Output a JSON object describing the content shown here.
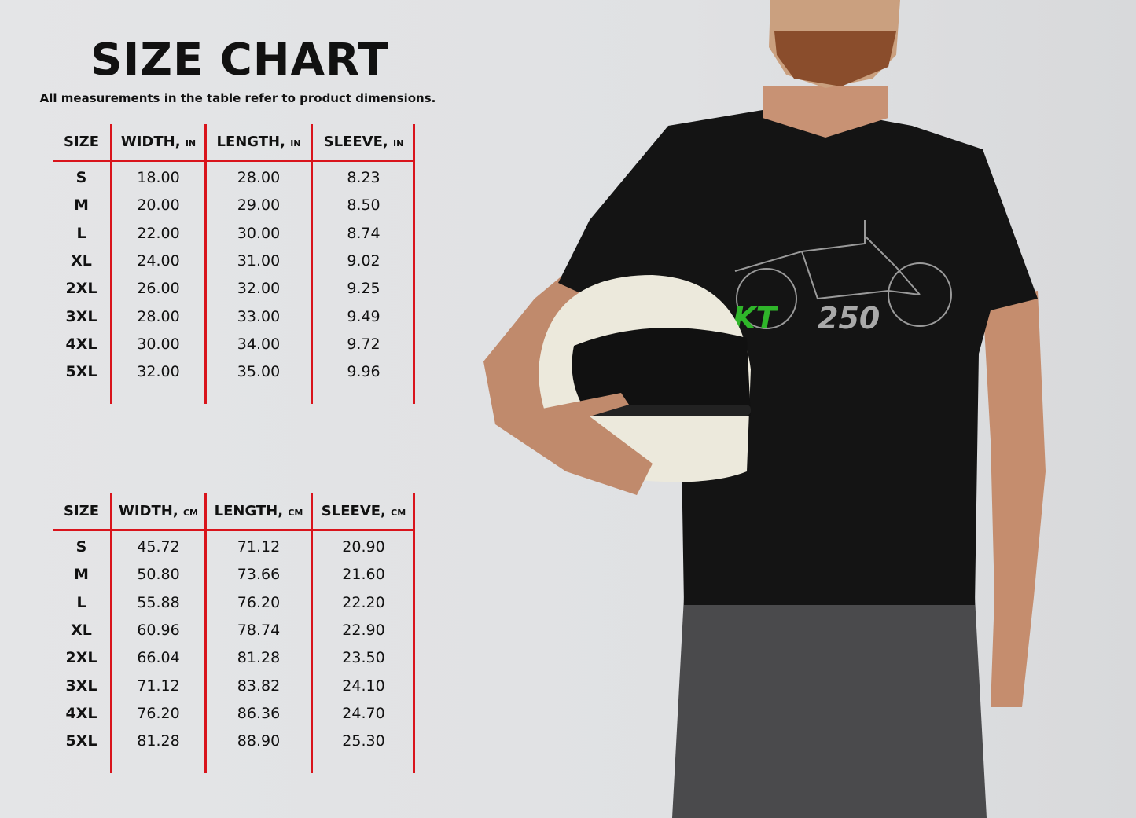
{
  "title": "SIZE CHART",
  "subtitle": "All measurements in the table refer to product dimensions.",
  "tables": [
    {
      "headers": [
        {
          "label": "SIZE",
          "unit": ""
        },
        {
          "label": "WIDTH,",
          "unit": "IN"
        },
        {
          "label": "LENGTH,",
          "unit": "IN"
        },
        {
          "label": "SLEEVE,",
          "unit": "IN"
        }
      ],
      "rows": [
        [
          "S",
          "18.00",
          "28.00",
          "8.23"
        ],
        [
          "M",
          "20.00",
          "29.00",
          "8.50"
        ],
        [
          "L",
          "22.00",
          "30.00",
          "8.74"
        ],
        [
          "XL",
          "24.00",
          "31.00",
          "9.02"
        ],
        [
          "2XL",
          "26.00",
          "32.00",
          "9.25"
        ],
        [
          "3XL",
          "28.00",
          "33.00",
          "9.49"
        ],
        [
          "4XL",
          "30.00",
          "34.00",
          "9.72"
        ],
        [
          "5XL",
          "32.00",
          "35.00",
          "9.96"
        ]
      ]
    },
    {
      "headers": [
        {
          "label": "SIZE",
          "unit": ""
        },
        {
          "label": "WIDTH,",
          "unit": "CM"
        },
        {
          "label": "LENGTH,",
          "unit": "CM"
        },
        {
          "label": "SLEEVE,",
          "unit": "CM"
        }
      ],
      "rows": [
        [
          "S",
          "45.72",
          "71.12",
          "20.90"
        ],
        [
          "M",
          "50.80",
          "73.66",
          "21.60"
        ],
        [
          "L",
          "55.88",
          "76.20",
          "22.20"
        ],
        [
          "XL",
          "60.96",
          "78.74",
          "22.90"
        ],
        [
          "2XL",
          "66.04",
          "81.28",
          "23.50"
        ],
        [
          "3XL",
          "71.12",
          "83.82",
          "24.10"
        ],
        [
          "4XL",
          "76.20",
          "86.36",
          "24.70"
        ],
        [
          "5XL",
          "81.28",
          "88.90",
          "25.30"
        ]
      ]
    }
  ],
  "shirt_graphic": {
    "text_green": "KT",
    "text_gray": "250"
  },
  "colors": {
    "rule": "#d9141c",
    "logo_green": "#2fb52a",
    "logo_gray": "#a9a9a9",
    "shirt": "#141414"
  }
}
